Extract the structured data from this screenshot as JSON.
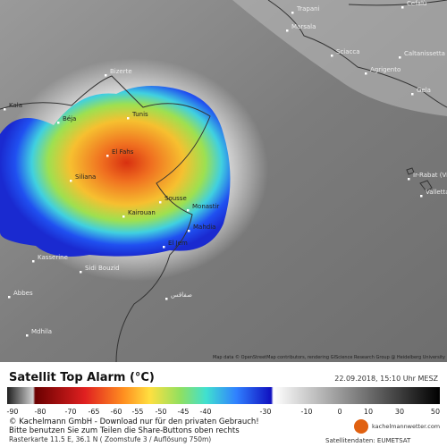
{
  "map": {
    "labels": [
      "Trapani",
      "Cefalù",
      "Marsala",
      "Sciacca",
      "Caltanissetta",
      "Agrigento",
      "Gela",
      "Bizerte",
      "Kala",
      "Tunis",
      "Béja",
      "El Fahs",
      "Siliana",
      "Kairouan",
      "Sousse",
      "Monastir",
      "Mahdia",
      "El Jem",
      "Kasserine",
      "Sidi Bouzid",
      "Abbes",
      "Mdhila",
      "Ir-Rabat (Victoria)",
      "Valletta",
      "صفاقس"
    ],
    "attribution": "Map data © OpenStreetMap contributors, rendering GIScience Research Group @ Heidelberg University"
  },
  "legend": {
    "title": "Satellit Top Alarm (°C)",
    "timestamp": "22.09.2018, 15:10 Uhr MESZ",
    "ticks": [
      "-90",
      "-80",
      "-70",
      "-65",
      "-60",
      "-55",
      "-50",
      "-45",
      "-40",
      "-30",
      "-10",
      "0",
      "10",
      "30",
      "50"
    ]
  },
  "footer": {
    "line1": "© Kachelmann GmbH - Download nur für den privaten Gebrauch!",
    "line2": "Bitte benutzen Sie zum Teilen die Share-Buttons oben rechts",
    "line3": "Rasterkarte 11.5 E, 36.1 N ( Zoomstufe 3 / Auflösung 750m)",
    "logo": "kachelmannwetter.com",
    "source": "Satellitendaten: EUMETSAT"
  }
}
